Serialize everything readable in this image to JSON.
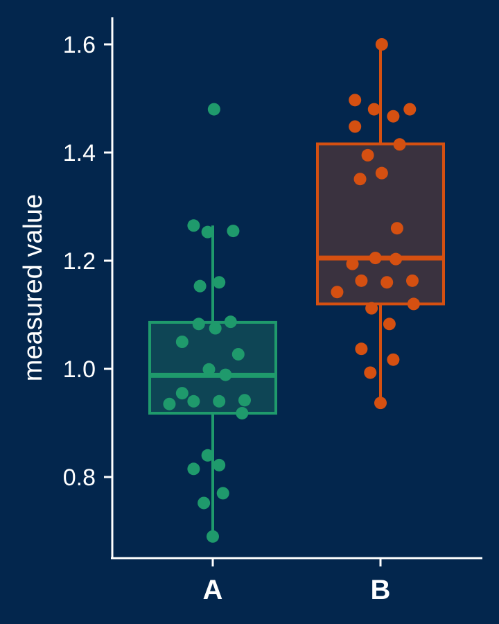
{
  "chart_data": {
    "type": "box",
    "xlabel": "",
    "ylabel": "measured value",
    "ylim": [
      0.65,
      1.65
    ],
    "yticks": [
      "0.8",
      "1.0",
      "1.2",
      "1.4",
      "1.6"
    ],
    "categories": [
      "A",
      "B"
    ],
    "grid": false,
    "legend": "none",
    "groups": [
      {
        "category": "A",
        "color": "#1f9a6c",
        "box_fill": "#0e4555",
        "whisker_low": 0.69,
        "q1": 0.918,
        "median": 0.988,
        "q3": 1.086,
        "whisker_high": 1.265,
        "points": [
          {
            "offset": 0.01,
            "y": 1.48
          },
          {
            "offset": -0.15,
            "y": 1.265
          },
          {
            "offset": -0.04,
            "y": 1.253
          },
          {
            "offset": 0.16,
            "y": 1.255
          },
          {
            "offset": -0.1,
            "y": 1.153
          },
          {
            "offset": 0.05,
            "y": 1.16
          },
          {
            "offset": -0.11,
            "y": 1.083
          },
          {
            "offset": 0.02,
            "y": 1.075
          },
          {
            "offset": 0.14,
            "y": 1.087
          },
          {
            "offset": -0.24,
            "y": 1.05
          },
          {
            "offset": 0.2,
            "y": 1.027
          },
          {
            "offset": -0.03,
            "y": 0.999
          },
          {
            "offset": 0.1,
            "y": 0.989
          },
          {
            "offset": -0.24,
            "y": 0.955
          },
          {
            "offset": -0.15,
            "y": 0.94
          },
          {
            "offset": 0.05,
            "y": 0.94
          },
          {
            "offset": 0.25,
            "y": 0.942
          },
          {
            "offset": -0.34,
            "y": 0.935
          },
          {
            "offset": 0.23,
            "y": 0.918
          },
          {
            "offset": -0.04,
            "y": 0.84
          },
          {
            "offset": 0.05,
            "y": 0.822
          },
          {
            "offset": -0.15,
            "y": 0.815
          },
          {
            "offset": -0.07,
            "y": 0.752
          },
          {
            "offset": 0.08,
            "y": 0.77
          },
          {
            "offset": 0.0,
            "y": 0.69
          }
        ]
      },
      {
        "category": "B",
        "color": "#d55011",
        "box_fill": "#3a323f",
        "whisker_low": 0.937,
        "q1": 1.12,
        "median": 1.205,
        "q3": 1.416,
        "whisker_high": 1.6,
        "points": [
          {
            "offset": 0.01,
            "y": 1.6
          },
          {
            "offset": -0.2,
            "y": 1.497
          },
          {
            "offset": -0.05,
            "y": 1.48
          },
          {
            "offset": 0.1,
            "y": 1.467
          },
          {
            "offset": 0.23,
            "y": 1.48
          },
          {
            "offset": -0.2,
            "y": 1.448
          },
          {
            "offset": 0.15,
            "y": 1.415
          },
          {
            "offset": -0.1,
            "y": 1.395
          },
          {
            "offset": 0.01,
            "y": 1.362
          },
          {
            "offset": -0.16,
            "y": 1.351
          },
          {
            "offset": 0.13,
            "y": 1.26
          },
          {
            "offset": -0.04,
            "y": 1.205
          },
          {
            "offset": 0.12,
            "y": 1.203
          },
          {
            "offset": -0.22,
            "y": 1.194
          },
          {
            "offset": -0.15,
            "y": 1.163
          },
          {
            "offset": 0.05,
            "y": 1.16
          },
          {
            "offset": 0.25,
            "y": 1.163
          },
          {
            "offset": -0.34,
            "y": 1.142
          },
          {
            "offset": 0.26,
            "y": 1.12
          },
          {
            "offset": -0.07,
            "y": 1.112
          },
          {
            "offset": 0.07,
            "y": 1.083
          },
          {
            "offset": -0.15,
            "y": 1.037
          },
          {
            "offset": 0.1,
            "y": 1.017
          },
          {
            "offset": -0.08,
            "y": 0.993
          },
          {
            "offset": 0.0,
            "y": 0.937
          }
        ]
      }
    ]
  }
}
